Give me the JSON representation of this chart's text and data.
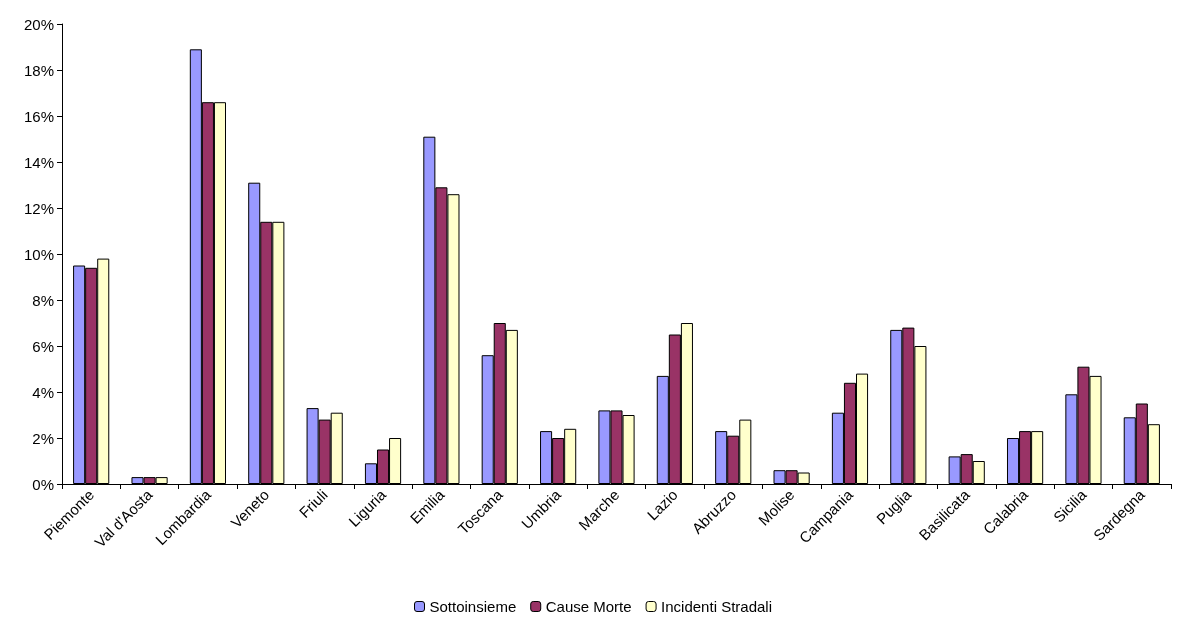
{
  "chart_data": {
    "type": "bar",
    "categories": [
      "Piemonte",
      "Val d'Aosta",
      "Lombardia",
      "Veneto",
      "Friuli",
      "Liguria",
      "Emilia",
      "Toscana",
      "Umbria",
      "Marche",
      "Lazio",
      "Abruzzo",
      "Molise",
      "Campania",
      "Puglia",
      "Basilicata",
      "Calabria",
      "Sicilia",
      "Sardegna"
    ],
    "series": [
      {
        "name": "Sottoinsieme",
        "color": "#9999ff",
        "values": [
          9.5,
          0.3,
          18.9,
          13.1,
          3.3,
          0.9,
          15.1,
          5.6,
          2.3,
          3.2,
          4.7,
          2.3,
          0.6,
          3.1,
          6.7,
          1.2,
          2.0,
          3.9,
          2.9
        ]
      },
      {
        "name": "Cause Morte",
        "color": "#993366",
        "values": [
          9.4,
          0.3,
          16.6,
          11.4,
          2.8,
          1.5,
          12.9,
          7.0,
          2.0,
          3.2,
          6.5,
          2.1,
          0.6,
          4.4,
          6.8,
          1.3,
          2.3,
          5.1,
          3.5
        ]
      },
      {
        "name": "Incidenti Stradali",
        "color": "#ffffcc",
        "values": [
          9.8,
          0.3,
          16.6,
          11.4,
          3.1,
          2.0,
          12.6,
          6.7,
          2.4,
          3.0,
          7.0,
          2.8,
          0.5,
          4.8,
          6.0,
          1.0,
          2.3,
          4.7,
          2.6
        ]
      }
    ],
    "ylim": [
      0,
      20
    ],
    "yticks": [
      {
        "value": 0,
        "label": "0%"
      },
      {
        "value": 2,
        "label": "2%"
      },
      {
        "value": 4,
        "label": "4%"
      },
      {
        "value": 6,
        "label": "6%"
      },
      {
        "value": 8,
        "label": "8%"
      },
      {
        "value": 10,
        "label": "10%"
      },
      {
        "value": 12,
        "label": "12%"
      },
      {
        "value": 14,
        "label": "14%"
      },
      {
        "value": 16,
        "label": "16%"
      },
      {
        "value": 18,
        "label": "18%"
      },
      {
        "value": 20,
        "label": "20%"
      }
    ],
    "grid": false,
    "legend": "bottom"
  }
}
